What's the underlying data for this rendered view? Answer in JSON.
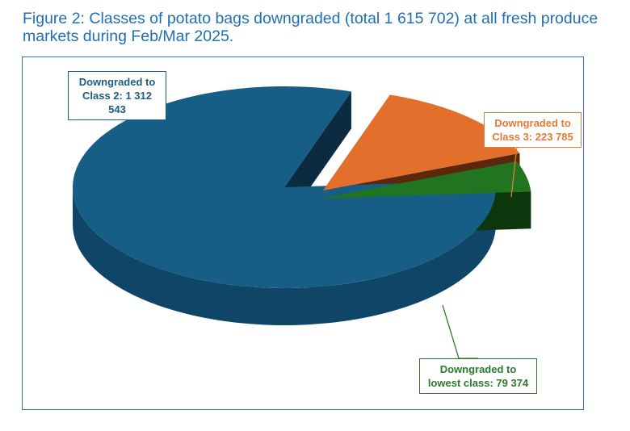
{
  "title": "Figure 2: Classes of potato bags downgraded (total 1 615 702) at all fresh produce markets during Feb/Mar 2025.",
  "chart_data": {
    "type": "pie",
    "style": "3d-exploded",
    "total": 1615702,
    "slices": [
      {
        "label_line1": "Downgraded to",
        "label_line2": "Class 2: 1 312 543",
        "value": 1312543,
        "color": "#175e86",
        "side": "#0f4566",
        "dark": "#0d3650"
      },
      {
        "label_line1": "Downgraded to",
        "label_line2": "Class 3: 223 785",
        "value": 223785,
        "color": "#e36f2c",
        "side": "#8a3b10",
        "dark": "#5c270a"
      },
      {
        "label_line1": "Downgraded to",
        "label_line2": "lowest class: 79 374",
        "value": 79374,
        "color": "#217521",
        "side": "#155215",
        "dark": "#0c360c"
      }
    ]
  }
}
